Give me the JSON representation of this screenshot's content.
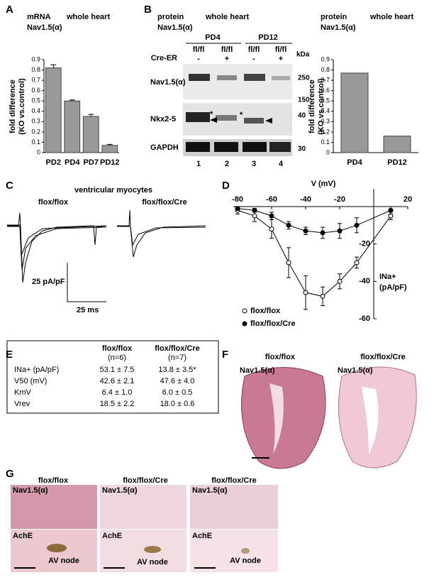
{
  "panels": [
    "A",
    "B",
    "C",
    "D",
    "E",
    "F",
    "G"
  ],
  "chart_data": [
    {
      "type": "bar",
      "title": "mRNA",
      "subtitle": "Nav1.5(α)",
      "note": "whole heart",
      "ylabel": [
        "fold difference",
        "(KO vs.control)"
      ],
      "categories": [
        "PD2",
        "PD4",
        "PD7",
        "PD12"
      ],
      "values": [
        0.82,
        0.5,
        0.35,
        0.07
      ],
      "errors": [
        0.03,
        0.01,
        0.02,
        0.01
      ],
      "color": "#999999",
      "ylim": [
        0,
        0.9
      ],
      "yticks": [
        0,
        0.1,
        0.2,
        0.3,
        0.4,
        0.5,
        0.6,
        0.7,
        0.8,
        0.9
      ]
    },
    {
      "type": "bar",
      "title": "protein",
      "subtitle": "Nav1.5(α)",
      "note": "whole heart",
      "ylabel": [
        "fold difference",
        "(KO vs.control)"
      ],
      "categories": [
        "PD4",
        "PD12"
      ],
      "values": [
        0.77,
        0.16
      ],
      "color": "#999999",
      "ylim": [
        0,
        0.9
      ],
      "yticks": [
        0,
        0.1,
        0.2,
        0.3,
        0.4,
        0.5,
        0.6,
        0.7,
        0.8,
        0.9
      ]
    },
    {
      "type": "line",
      "xlabel": "V (mV)",
      "ylabel": [
        "INa+",
        "(pA/pF)"
      ],
      "x": [
        -80,
        -70,
        -60,
        -50,
        -40,
        -30,
        -20,
        -10,
        10
      ],
      "series": [
        {
          "name": "flox/flox",
          "color": "#000000",
          "marker": "open",
          "values": [
            -2,
            -5,
            -12,
            -30,
            -46,
            -48,
            -40,
            -30,
            -5
          ],
          "errors": [
            2,
            3,
            5,
            8,
            9,
            5,
            4,
            3,
            2
          ]
        },
        {
          "name": "flox/flox/Cre",
          "color": "#000000",
          "marker": "filled",
          "values": [
            -1,
            -2,
            -5,
            -10,
            -13,
            -14,
            -13,
            -10,
            -2
          ],
          "errors": [
            1,
            1,
            2,
            2,
            2,
            3,
            4,
            4,
            2
          ]
        }
      ],
      "xlim": [
        -80,
        20
      ],
      "ylim": [
        -60,
        0
      ],
      "xticks": [
        -80,
        -60,
        -40,
        -20,
        20
      ],
      "yticks": [
        -20,
        -40,
        -60
      ]
    }
  ],
  "blot": {
    "title": "protein",
    "subtitle": "Nav1.5(α)",
    "note": "whole heart",
    "timepoints": [
      "PD4",
      "PD12"
    ],
    "row_label": "Cre-ER",
    "genotypes": [
      "fl/fl",
      "fl/fl",
      "fl/fl",
      "fl/fl"
    ],
    "cre": [
      "-",
      "+",
      "-",
      "+"
    ],
    "kda_label": "kDa",
    "bands": [
      "Nav1.5(α)",
      "Nkx2-5",
      "GAPDH"
    ],
    "markers": [
      250,
      150,
      40,
      30
    ],
    "lanes": [
      1,
      2,
      3,
      4
    ],
    "asterisks": [
      "*",
      "*"
    ]
  },
  "traces": {
    "title": "ventricular myocytes",
    "groups": [
      "flox/flox",
      "flox/flox/Cre"
    ],
    "scale_y": "25 pA/pF",
    "scale_x": "25 ms"
  },
  "table": {
    "header": [
      "flox/flox",
      "flox/flox/Cre"
    ],
    "n": [
      "(n=6)",
      "(n=7)"
    ],
    "rows": [
      [
        "INa+ (pA/pF)",
        "53.1 ± 7.5",
        "13.8 ± 3.5*"
      ],
      [
        "V50 (mV)",
        "42.6 ± 2.1",
        "47.6 ± 4.0"
      ],
      [
        "KmV",
        "6.4 ± 1.0",
        "6.0 ± 0.5"
      ],
      [
        "Vrev",
        "18.5 ± 2.2",
        "18.0 ± 0.6"
      ]
    ]
  },
  "sections_f": {
    "groups": [
      "flox/flox",
      "flox/flox/Cre"
    ],
    "stain": [
      "Nav1.5(α)",
      "Nav1.5(α)"
    ]
  },
  "sections_g": {
    "groups": [
      "flox/flox",
      "flox/flox/Cre",
      "flox/flox/Cre"
    ],
    "stain_top": [
      "Nav1.5(α)",
      "Nav1.5(α)",
      "Nav1.5(α)"
    ],
    "stain_bottom": [
      "AchE",
      "AchE",
      "AchE"
    ],
    "region": [
      "AV node",
      "AV node",
      "AV node"
    ]
  }
}
